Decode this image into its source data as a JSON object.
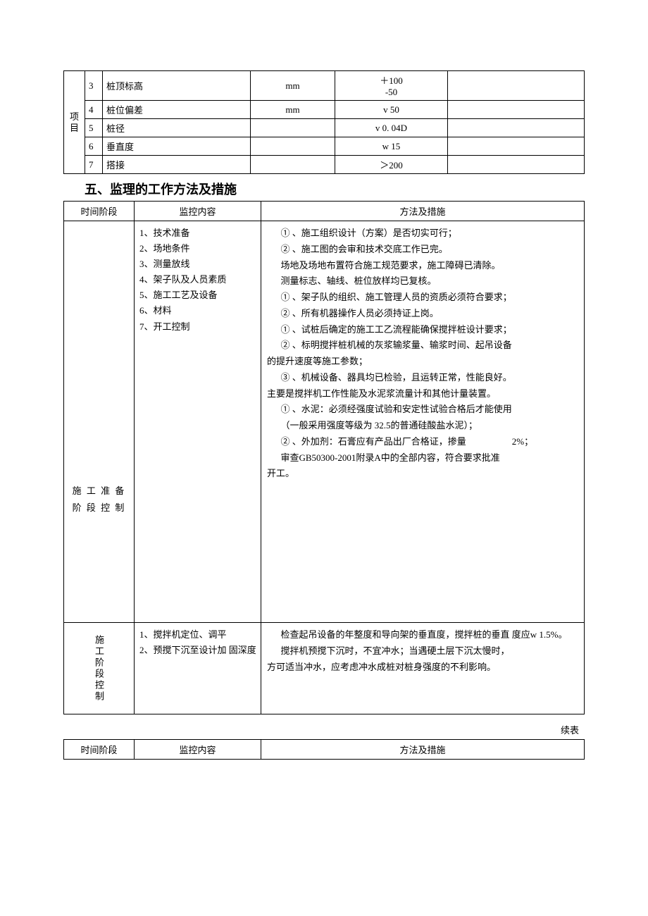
{
  "table1": {
    "vertical_label": "项目",
    "rows": [
      {
        "num": "3",
        "item": "桩顶标高",
        "unit": "mm",
        "val": "＋100\n-50"
      },
      {
        "num": "4",
        "item": "桩位偏差",
        "unit": "mm",
        "val": "v 50"
      },
      {
        "num": "5",
        "item": "桩径",
        "unit": "",
        "val": "v 0. 04D"
      },
      {
        "num": "6",
        "item": "垂直度",
        "unit": "",
        "val": "w 15"
      },
      {
        "num": "7",
        "item": "搭接",
        "unit": "",
        "val": "＞200"
      }
    ]
  },
  "heading": "五、监理的工作方法及措施",
  "table2": {
    "headers": {
      "phase": "时间阶段",
      "content": "监控内容",
      "method": "方法及措施"
    },
    "row1": {
      "phase": "施 工 准 备 阶 段 控 制",
      "content": [
        "1、技术准备",
        "2、场地条件",
        "3、测量放线",
        "4、架子队及人员素质",
        "5、施工工艺及设备",
        "6、材料",
        "7、开工控制"
      ],
      "method": [
        "① 、施工组织设计（方案）是否切实可行；",
        "② 、施工图的会审和技术交底工作已完。",
        "场地及场地布置符合施工规范要求，施工障碍已清除。",
        "测量标志、轴线、桩位放样均已复核。",
        "① 、架子队的组织、施工管理人员的资质必须符合要求；",
        "② 、所有机器操作人员必须持证上岗。",
        "① 、试桩后确定的施工工乙流程能确保搅拌桩设计要求；",
        "② 、标明搅拌桩机械的灰浆输浆量、输浆时间、起吊设备",
        "的提升速度等施工参数；",
        "③ 、机械设备、器具均已检验，且运转正常，性能良好。",
        "主要是搅拌机工作性能及水泥浆流量计和其他计量装置。",
        "① 、水泥：必须经强度试验和安定性试验合格后才能使用",
        "（一般采用强度等级为 32.5的普通硅酸盐水泥）；",
        "② 、外加剂：石膏应有产品出厂合格证，掺量　　　　　2%；",
        "审查GB50300-2001附录A中的全部内容，符合要求批准",
        "开工。"
      ]
    },
    "row2": {
      "phase": "施工阶段控制",
      "content": [
        "1、搅拌机定位、调平",
        "2、预搅下沉至设计加  固深度"
      ],
      "method": [
        "检查起吊设备的年整度和导向架的垂直度，搅拌桩的垂直  度应w 1.5%。",
        "搅拌机预搅下沉时，不宜冲水；当遇硬土层下沉太慢时，",
        "方可适当冲水，应考虑冲水成桩对桩身强度的不利影响。"
      ]
    }
  },
  "continue_label": "续表",
  "table3": {
    "headers": {
      "phase": "时间阶段",
      "content": "监控内容",
      "method": "方法及措施"
    }
  }
}
